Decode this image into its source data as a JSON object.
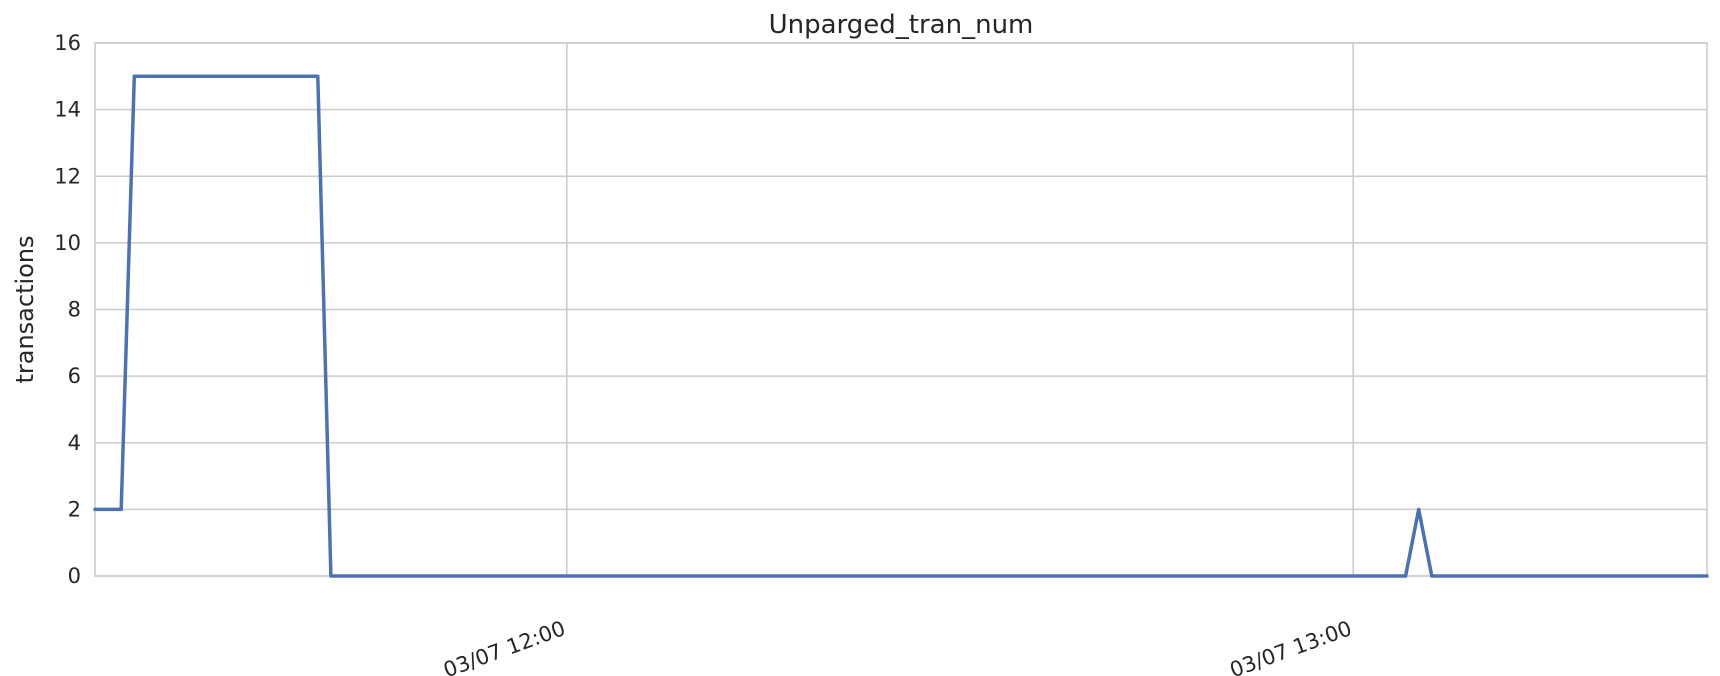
{
  "chart_data": {
    "type": "line",
    "title": "Unparged_tran_num",
    "xlabel": "",
    "ylabel": "transactions",
    "ylim": [
      0,
      16
    ],
    "yticks": [
      0,
      2,
      4,
      6,
      8,
      10,
      12,
      14,
      16
    ],
    "xlim": [
      "03/07 11:24",
      "03/07 13:27"
    ],
    "xticks": [
      {
        "value": "03/07 12:00",
        "label": "03/07 12:00"
      },
      {
        "value": "03/07 13:00",
        "label": "03/07 13:00"
      }
    ],
    "grid": true,
    "legend": "none",
    "color": "#4c72b0",
    "series": [
      {
        "x": [
          "03/07 11:24",
          "03/07 11:26",
          "03/07 11:27",
          "03/07 11:41",
          "03/07 11:42",
          "03/07 13:04",
          "03/07 13:05",
          "03/07 13:06",
          "03/07 13:27"
        ],
        "values": [
          2,
          2,
          15,
          15,
          0,
          0,
          2,
          0,
          0
        ]
      }
    ]
  }
}
